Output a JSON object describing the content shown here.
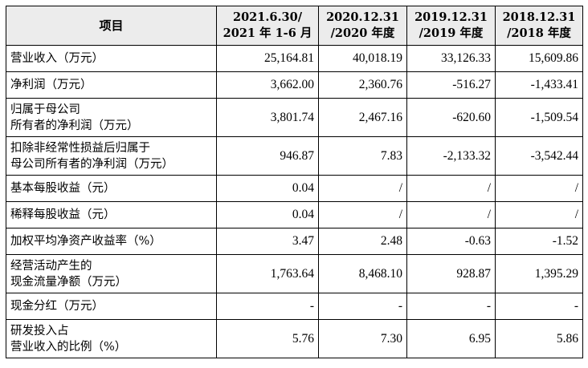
{
  "table": {
    "headers": [
      {
        "lines": [
          "项目"
        ]
      },
      {
        "lines": [
          "2021.6.30/",
          "2021 年 1-6 月"
        ]
      },
      {
        "lines": [
          "2020.12.31",
          "/2020 年度"
        ]
      },
      {
        "lines": [
          "2019.12.31",
          "/2019 年度"
        ]
      },
      {
        "lines": [
          "2018.12.31",
          "/2018 年度"
        ]
      }
    ],
    "rows": [
      {
        "label": [
          "营业收入（万元）"
        ],
        "values": [
          "25,164.81",
          "40,018.19",
          "33,126.33",
          "15,609.86"
        ]
      },
      {
        "label": [
          "净利润（万元）"
        ],
        "values": [
          "3,662.00",
          "2,360.76",
          "-516.27",
          "-1,433.41"
        ]
      },
      {
        "label": [
          "归属于母公司",
          "所有者的净利润（万元）"
        ],
        "values": [
          "3,801.74",
          "2,467.16",
          "-620.60",
          "-1,509.54"
        ]
      },
      {
        "label": [
          "扣除非经常性损益后归属于",
          "母公司所有者的净利润（万元）"
        ],
        "values": [
          "946.87",
          "7.83",
          "-2,133.32",
          "-3,542.44"
        ]
      },
      {
        "label": [
          "基本每股收益（元）"
        ],
        "values": [
          "0.04",
          "/",
          "/",
          "/"
        ]
      },
      {
        "label": [
          "稀释每股收益（元）"
        ],
        "values": [
          "0.04",
          "/",
          "/",
          "/"
        ]
      },
      {
        "label": [
          "加权平均净资产收益率（%）"
        ],
        "values": [
          "3.47",
          "2.48",
          "-0.63",
          "-1.52"
        ]
      },
      {
        "label": [
          "经营活动产生的",
          "现金流量净额（万元）"
        ],
        "values": [
          "1,763.64",
          "8,468.10",
          "928.87",
          "1,395.29"
        ]
      },
      {
        "label": [
          "现金分红（万元）"
        ],
        "values": [
          "-",
          "-",
          "-",
          "-"
        ]
      },
      {
        "label": [
          "研发投入占",
          "营业收入的比例（%）"
        ],
        "values": [
          "5.76",
          "7.30",
          "6.95",
          "5.86"
        ]
      }
    ]
  }
}
